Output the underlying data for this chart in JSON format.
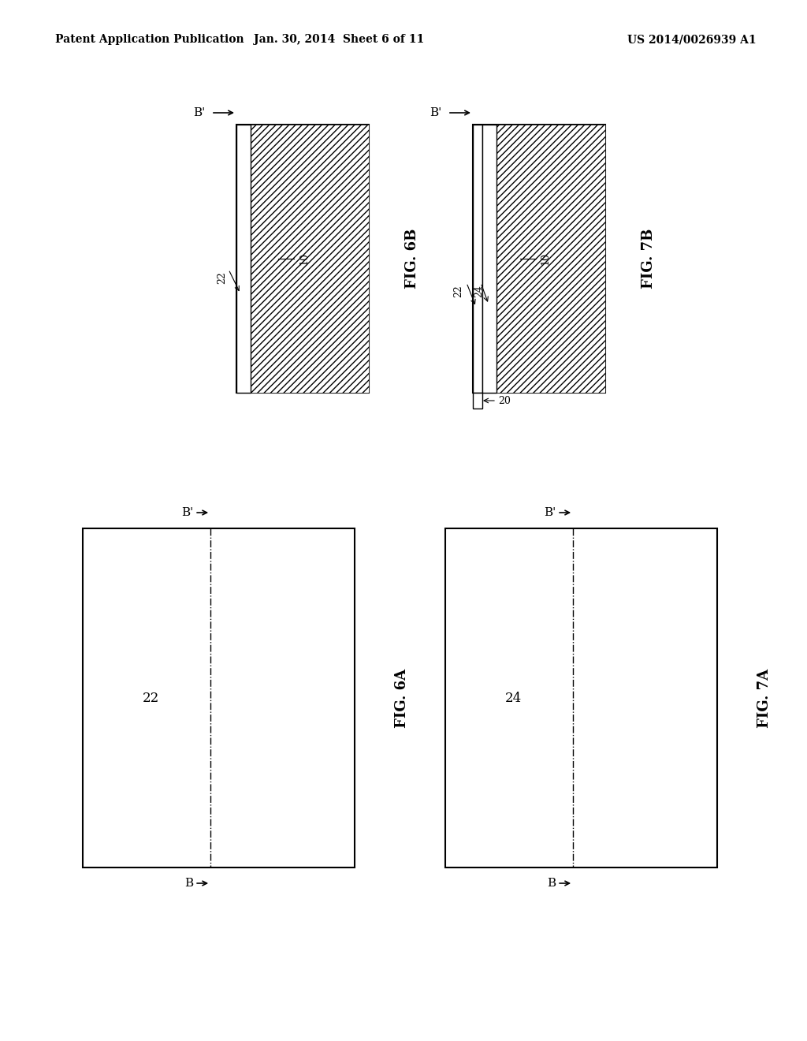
{
  "header_left": "Patent Application Publication",
  "header_mid": "Jan. 30, 2014  Sheet 6 of 11",
  "header_right": "US 2014/0026939 A1",
  "background": "#ffffff"
}
